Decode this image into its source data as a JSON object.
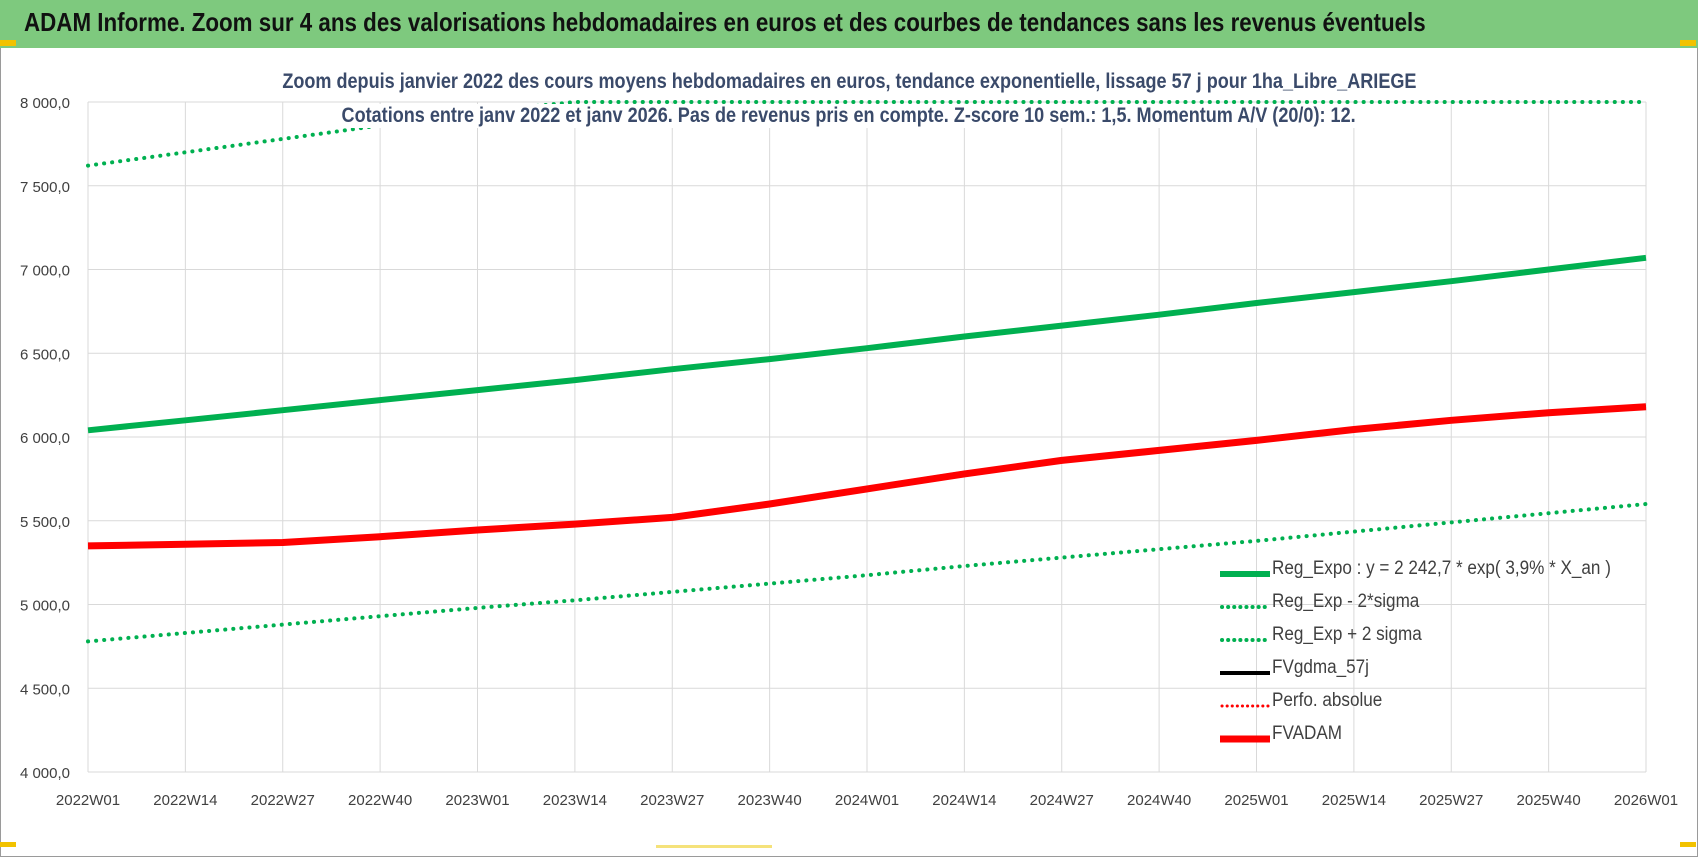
{
  "header": {
    "title": "ADAM Informe. Zoom sur 4 ans des valorisations hebdomadaires en euros et des courbes de tendances sans les revenus éventuels"
  },
  "colors": {
    "header_bg": "#7ec97e",
    "reg_expo": "#00b050",
    "fvadam": "#ff0000",
    "fvgdma": "#000000",
    "perfo": "#ff0000",
    "grid": "#d9d9d9",
    "corner_accent": "#f2c200"
  },
  "chart_data": {
    "type": "line",
    "title": "Zoom depuis janvier 2022 des cours moyens hebdomadaires en euros, tendance exponentielle, lissage 57 j pour 1ha_Libre_ARIEGE",
    "subtitle": "Cotations entre janv 2022 et janv 2026. Pas de revenus pris en compte. Z-score 10 sem.: 1,5. Momentum A/V (20/0): 12.",
    "xlabel": "",
    "ylabel": "",
    "ylim": [
      4000,
      8000
    ],
    "yticks": [
      "4 000,0",
      "4 500,0",
      "5 000,0",
      "5 500,0",
      "6 000,0",
      "6 500,0",
      "7 000,0",
      "7 500,0",
      "8 000,0"
    ],
    "xticks": [
      "2022W01",
      "2022W14",
      "2022W27",
      "2022W40",
      "2023W01",
      "2023W14",
      "2023W27",
      "2023W40",
      "2024W01",
      "2024W14",
      "2024W27",
      "2024W40",
      "2025W01",
      "2025W14",
      "2025W27",
      "2025W40",
      "2026W01"
    ],
    "grid": true,
    "legend_position": "bottom-right",
    "series": [
      {
        "name": "Reg_Expo : y = 2 242,7 * exp( 3,9% *  X_an )",
        "style": "solid",
        "color": "#00b050",
        "values": [
          6040,
          6100,
          6160,
          6220,
          6280,
          6340,
          6405,
          6465,
          6530,
          6600,
          6665,
          6730,
          6800,
          6865,
          6930,
          7000,
          7070
        ]
      },
      {
        "name": "Reg_Exp - 2*sigma",
        "style": "dotted",
        "color": "#00b050",
        "values": [
          4780,
          4830,
          4880,
          4930,
          4980,
          5025,
          5075,
          5125,
          5175,
          5230,
          5280,
          5330,
          5380,
          5435,
          5490,
          5545,
          5600
        ]
      },
      {
        "name": "Reg_Exp + 2 sigma",
        "style": "dotted",
        "color": "#00b050",
        "values": [
          7620,
          7700,
          7780,
          7860,
          7940,
          8000,
          8000,
          8000,
          8000,
          8000,
          8000,
          8000,
          8000,
          8000,
          8000,
          8000,
          8000
        ]
      },
      {
        "name": "FVgdma_57j",
        "style": "solid-thin",
        "color": "#000000",
        "values": [
          5350,
          5360,
          5375,
          5410,
          5450,
          5480,
          5530,
          5610,
          5700,
          5790,
          5860,
          5920,
          5980,
          6045,
          6100,
          6145,
          6180
        ]
      },
      {
        "name": "Perfo. absolue",
        "style": "dotted",
        "color": "#ff0000",
        "values": []
      },
      {
        "name": "FVADAM",
        "style": "solid",
        "color": "#ff0000",
        "values": [
          5350,
          5360,
          5370,
          5405,
          5445,
          5480,
          5520,
          5600,
          5690,
          5780,
          5860,
          5920,
          5980,
          6045,
          6100,
          6145,
          6180
        ]
      }
    ]
  }
}
